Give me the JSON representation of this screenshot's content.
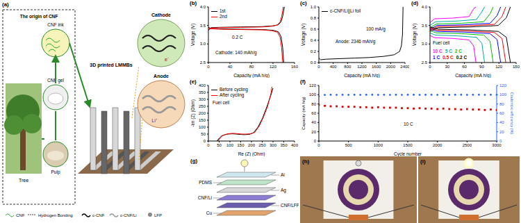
{
  "chart_data": [
    {
      "title": "(b)",
      "type": "line",
      "x_label": "Capacity (mA h/g)",
      "y_label": "Voltage (V)",
      "xlim": [
        0,
        160
      ],
      "xticks": [
        0,
        40,
        80,
        120,
        160
      ],
      "ylim": [
        2.5,
        4.0
      ],
      "yticks": [
        2.5,
        {
          "value": 3.0,
          "label": "3.0"
        },
        3.5,
        {
          "value": 4.0,
          "label": "4.0"
        }
      ],
      "legend": "upper left",
      "annotations": [
        "0.2 C",
        "Cathode: 140 mAh/g"
      ],
      "series": [
        {
          "name": "1st",
          "color": "#000000",
          "x": [
            0,
            5,
            20,
            60,
            100,
            120,
            130,
            135,
            138,
            140,
            null,
            0,
            5,
            20,
            60,
            100,
            120,
            130,
            135,
            138,
            140,
            141
          ],
          "values": [
            3.45,
            3.42,
            3.41,
            3.4,
            3.39,
            3.37,
            3.33,
            3.2,
            2.9,
            2.5,
            null,
            3.38,
            3.44,
            3.45,
            3.46,
            3.47,
            3.49,
            3.52,
            3.6,
            3.75,
            3.9,
            4.0
          ]
        },
        {
          "name": "2nd",
          "color": "#ff0000",
          "x": [
            0,
            5,
            20,
            60,
            100,
            118,
            128,
            133,
            136,
            138,
            null,
            0,
            5,
            20,
            60,
            100,
            118,
            128,
            133,
            136,
            138,
            139
          ],
          "values": [
            3.44,
            3.41,
            3.4,
            3.39,
            3.38,
            3.36,
            3.32,
            3.19,
            2.9,
            2.5,
            null,
            3.37,
            3.43,
            3.44,
            3.45,
            3.46,
            3.48,
            3.51,
            3.59,
            3.74,
            3.9,
            4.0
          ]
        }
      ]
    },
    {
      "title": "(c)",
      "type": "line",
      "x_label": "Capacity (mA h/g)",
      "y_label": "Voltage (V)",
      "xlim": [
        0,
        2400
      ],
      "xticks": [
        0,
        400,
        800,
        1200,
        1600,
        2000,
        2400
      ],
      "ylim": [
        0,
        1.0
      ],
      "yticks": [
        {
          "value": 0,
          "label": "0.0"
        },
        0.2,
        0.4,
        0.6,
        0.8,
        {
          "value": 1.0,
          "label": "1.0"
        }
      ],
      "legend": "upper left",
      "annotations": [
        "100 mA/g",
        "Anode: 2346 mAh/g"
      ],
      "series": [
        {
          "name": "c-CNF/Li||Li foil",
          "color": "#000000",
          "x": [
            0,
            50,
            200,
            600,
            1000,
            1400,
            1800,
            2100,
            2250,
            2300,
            2330,
            2340,
            2346
          ],
          "values": [
            0.08,
            0.05,
            0.06,
            0.07,
            0.08,
            0.09,
            0.11,
            0.14,
            0.2,
            0.3,
            0.5,
            0.8,
            1.0
          ]
        }
      ]
    },
    {
      "title": "(d)",
      "type": "line",
      "x_label": "Capacity (mA h/g)",
      "y_label": "Voltage (V)",
      "xlim": [
        0,
        150
      ],
      "xticks": [
        0,
        30,
        60,
        90,
        120,
        150
      ],
      "ylim": [
        2.5,
        4.0
      ],
      "yticks": [
        2.5,
        {
          "value": 3.0,
          "label": "3.0"
        },
        3.5,
        {
          "value": 4.0,
          "label": "4.0"
        }
      ],
      "legend": "lower left",
      "annotations": [
        "Fuel cell"
      ],
      "series": [
        {
          "name": "10 C",
          "color": "#ff00ff",
          "x": [
            0,
            8,
            40,
            68,
            76,
            80,
            null,
            0,
            8,
            40,
            68,
            76,
            80
          ],
          "values": [
            3.23,
            3.17,
            3.15,
            3.11,
            2.95,
            2.5,
            null,
            3.58,
            3.68,
            3.7,
            3.74,
            3.95,
            4.0
          ]
        },
        {
          "name": "5 C",
          "color": "#00aaaa",
          "x": [
            0,
            9.5,
            47.5,
            80.8,
            90.3,
            95,
            null,
            0,
            9.5,
            47.5,
            80.8,
            90.3,
            95
          ],
          "values": [
            3.3,
            3.24,
            3.22,
            3.18,
            3.02,
            2.5,
            null,
            3.5,
            3.6,
            3.62,
            3.66,
            3.87,
            4.0
          ]
        },
        {
          "name": "2 C",
          "color": "#00bb00",
          "x": [
            0,
            11,
            55,
            93.5,
            104.5,
            110,
            null,
            0,
            11,
            55,
            93.5,
            104.5,
            110
          ],
          "values": [
            3.36,
            3.3,
            3.28,
            3.24,
            3.08,
            2.5,
            null,
            3.44,
            3.54,
            3.56,
            3.6,
            3.81,
            4.0
          ]
        },
        {
          "name": "1 C",
          "color": "#0000ff",
          "x": [
            0,
            12.3,
            61.5,
            104.6,
            116.9,
            123,
            null,
            0,
            12.3,
            61.5,
            104.6,
            116.9,
            123
          ],
          "values": [
            3.4,
            3.34,
            3.32,
            3.28,
            3.12,
            2.5,
            null,
            3.4,
            3.5,
            3.52,
            3.56,
            3.77,
            4.0
          ]
        },
        {
          "name": "0.5 C",
          "color": "#ff0000",
          "x": [
            0,
            13.2,
            66,
            112.2,
            125.4,
            132,
            null,
            0,
            13.2,
            66,
            112.2,
            125.4,
            132
          ],
          "values": [
            3.43,
            3.37,
            3.35,
            3.31,
            3.15,
            2.5,
            null,
            3.37,
            3.47,
            3.49,
            3.53,
            3.74,
            4.0
          ]
        },
        {
          "name": "0.2 C",
          "color": "#000000",
          "x": [
            0,
            14,
            70,
            119,
            133,
            140,
            null,
            0,
            14,
            70,
            119,
            133,
            140
          ],
          "values": [
            3.46,
            3.4,
            3.38,
            3.34,
            3.18,
            2.5,
            null,
            3.34,
            3.44,
            3.46,
            3.5,
            3.71,
            4.0
          ]
        }
      ]
    },
    {
      "title": "(e)",
      "type": "line",
      "x_label": "Re (Z) (Ohm)",
      "y_label": "-Im (Z) (Ohm)",
      "xlim": [
        0,
        400
      ],
      "xticks": [
        0,
        50,
        100,
        150,
        200,
        250,
        300,
        350,
        400
      ],
      "ylim": [
        0,
        400
      ],
      "yticks": [
        0,
        50,
        100,
        150,
        200,
        250,
        300,
        350,
        400
      ],
      "legend": "upper left",
      "annotations": [
        "Fuel cell"
      ],
      "series": [
        {
          "name": "Before cycling",
          "color": "#000000",
          "x": [
            40,
            50,
            60,
            75,
            90,
            110,
            130,
            150,
            170,
            190,
            210,
            230,
            250,
            270,
            290,
            300
          ],
          "values": [
            0,
            20,
            35,
            45,
            50,
            52,
            50,
            47,
            46,
            48,
            60,
            100,
            160,
            240,
            330,
            380
          ]
        },
        {
          "name": "After cycling",
          "color": "#ff0000",
          "x": [
            45,
            55,
            65,
            80,
            95,
            115,
            135,
            155,
            175,
            195,
            215,
            235,
            255,
            275,
            290,
            295
          ],
          "values": [
            0,
            22,
            38,
            48,
            53,
            55,
            53,
            50,
            50,
            52,
            62,
            105,
            170,
            250,
            340,
            390
          ]
        }
      ]
    },
    {
      "title": "(f)",
      "type": "scatter",
      "x_label": "Cycle number",
      "y_label": "Capacity (mA h/g)",
      "y2_label": "Coulombic efficiency (%)",
      "xlim": [
        0,
        3000
      ],
      "xticks": [
        0,
        500,
        1000,
        1500,
        2000,
        2500,
        3000
      ],
      "ylim": [
        0,
        120
      ],
      "yticks": [
        0,
        20,
        40,
        60,
        80,
        100,
        120
      ],
      "y2lim": [
        0,
        120
      ],
      "y2ticks": [
        0,
        20,
        40,
        60,
        80,
        100,
        120
      ],
      "annotations": [
        "10 C"
      ],
      "x": [
        0,
        100,
        200,
        300,
        400,
        500,
        600,
        700,
        800,
        900,
        1000,
        1100,
        1200,
        1300,
        1400,
        1500,
        1600,
        1700,
        1800,
        1900,
        2000,
        2100,
        2200,
        2300,
        2400,
        2500,
        2600,
        2700,
        2800,
        2900,
        3000
      ],
      "series": [
        {
          "color": "#dd0000",
          "marker": "square",
          "values": [
            78,
            76,
            75,
            75,
            74,
            74,
            74,
            73,
            73,
            72,
            73,
            72,
            72,
            72,
            71,
            71,
            70,
            71,
            70,
            70,
            69,
            70,
            69,
            69,
            68,
            69,
            68,
            68,
            67,
            68,
            67
          ]
        },
        {
          "color": "#1f5fff",
          "marker": "circle",
          "axis": "y2",
          "values": [
            96,
            99.5,
            99.8,
            99.6,
            99.9,
            99.7,
            99.8,
            99.6,
            99.9,
            99.8,
            99.7,
            99.9,
            99.6,
            99.8,
            99.7,
            99.9,
            99.8,
            99.6,
            99.8,
            99.9,
            99.7,
            99.8,
            99.6,
            99.9,
            99.8,
            99.7,
            99.9,
            99.8,
            99.6,
            99.8,
            99.7
          ]
        }
      ]
    }
  ],
  "diagram_a": {
    "title": "(a)",
    "origin_box": "The origin of CNF",
    "cnf_ink": "CNF ink",
    "cnf_gel": "CNF gel",
    "pulp": "Pulp",
    "tree": "Tree",
    "device": "3D printed LMMBs",
    "cathode": "Cathode",
    "anode": "Anode",
    "electron": "e⁻",
    "lithium_ion": "Li⁺",
    "key_items": [
      "CNF",
      "Hydrogen Bonding",
      "c-CNF",
      "c-CNF/Li",
      "LFP"
    ]
  },
  "diagram_g": {
    "title": "(g)",
    "layers": [
      "Al",
      "PDMS",
      "Ag",
      "CNF/Li",
      "CNF/LFP",
      "Cu"
    ]
  },
  "photo_h": {
    "title": "(h)"
  },
  "photo_i": {
    "title": "(i)"
  }
}
